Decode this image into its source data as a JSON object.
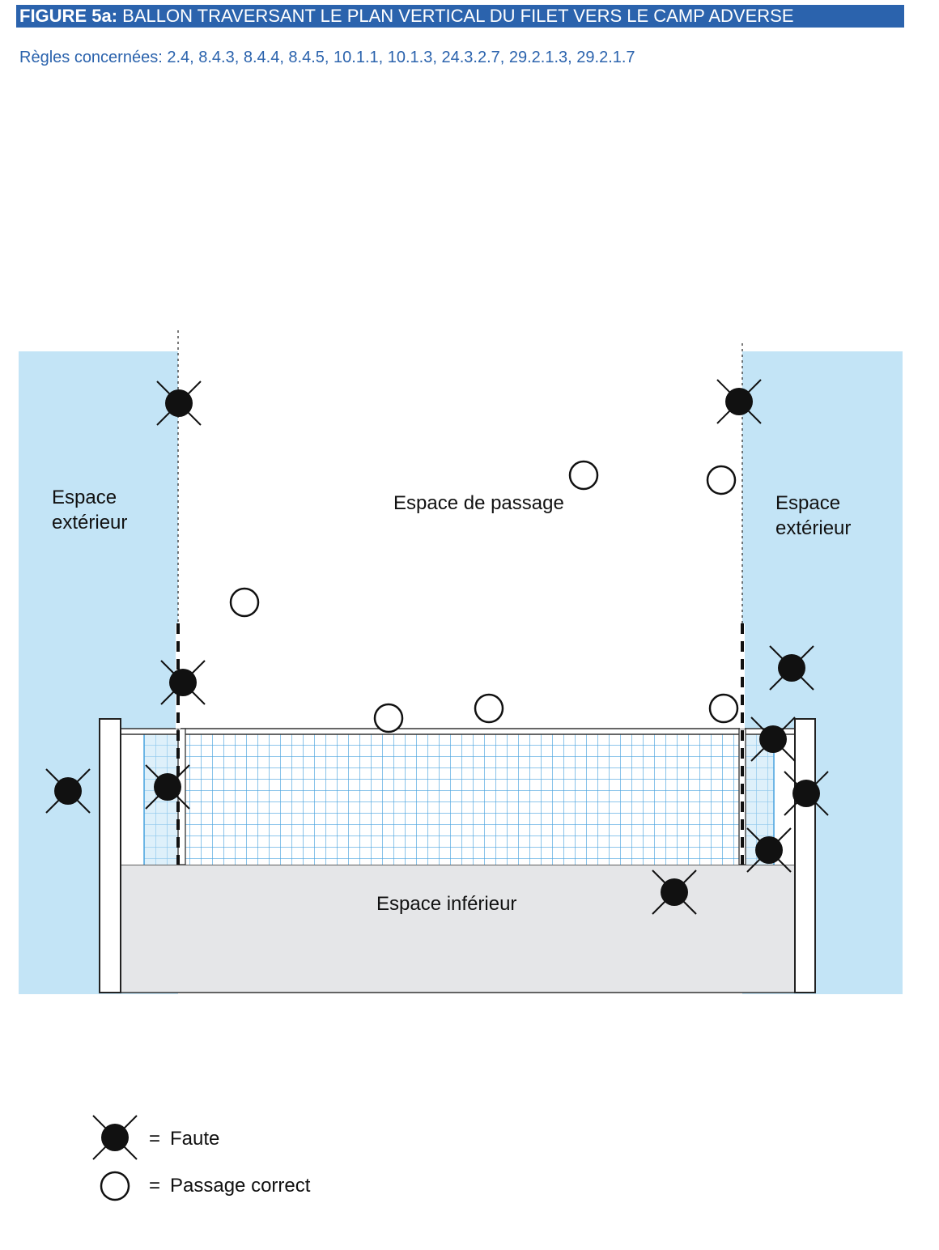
{
  "figure": {
    "title_prefix": "FIGURE 5a:",
    "title_text": " BALLON TRAVERSANT LE PLAN VERTICAL DU FILET VERS LE CAMP ADVERSE",
    "rules": "Règles concernées: 2.4, 8.4.3, 8.4.4, 8.4.5, 10.1.1, 10.1.3, 24.3.2.7, 29.2.1.3, 29.2.1.7"
  },
  "labels": {
    "exterior_left_1": "Espace",
    "exterior_left_2": "extérieur",
    "passage": "Espace de passage",
    "exterior_right_1": "Espace",
    "exterior_right_2": "extérieur",
    "inferior": "Espace inférieur"
  },
  "legend": {
    "fault_equals": "=",
    "fault_text": "Faute",
    "correct_equals": "=",
    "correct_text": "Passage correct"
  },
  "colors": {
    "title_bg": "#2b63ad",
    "rules_text": "#2b63ad",
    "outer_space": "#c3e4f6",
    "inferior_space": "#e5e6e8",
    "net_grid": "#4aa3df"
  }
}
